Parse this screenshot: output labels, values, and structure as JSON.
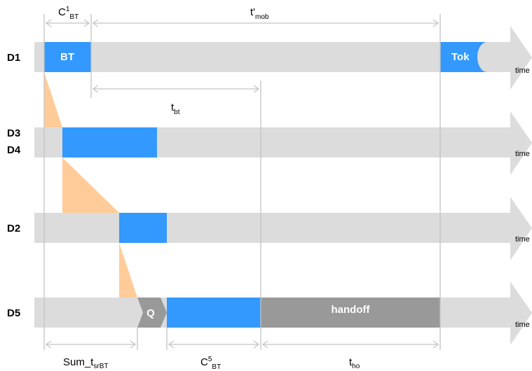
{
  "rows": [
    {
      "label": "D1",
      "axis": "time"
    },
    {
      "label": "D3",
      "label2": "D4",
      "axis": "time"
    },
    {
      "label": "D2",
      "axis": "time"
    },
    {
      "label": "D5",
      "axis": "time"
    }
  ],
  "blocks": {
    "bt": "BT",
    "tok": "Tok",
    "q": "Q",
    "handoff": "handoff"
  },
  "measures": {
    "c1bt": {
      "base": "C",
      "sup": "1",
      "sub": "BT"
    },
    "tmob": {
      "base": "t'",
      "sub": "mob"
    },
    "tbt": {
      "base": "t",
      "sub": "bt"
    },
    "sum": {
      "base": "Sum_t",
      "sub": "srBT"
    },
    "c5bt": {
      "base": "C",
      "sup": "5",
      "sub": "BT"
    },
    "tho": {
      "base": "t",
      "sub": "ho"
    }
  },
  "colors": {
    "lane": "#dcdcdc",
    "block": "#3399ff",
    "handoff": "#999999",
    "wedge": "#ffcc99",
    "guide": "#c4c4c4"
  }
}
